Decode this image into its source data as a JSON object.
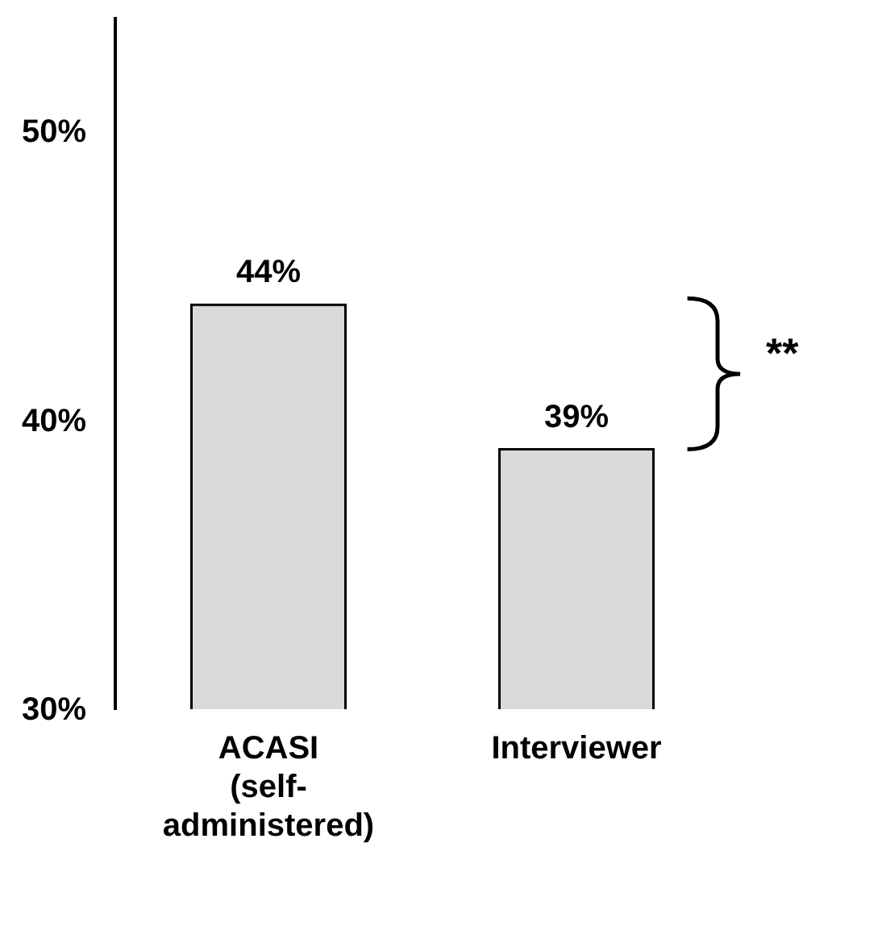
{
  "chart_data": {
    "type": "bar",
    "categories": [
      "ACASI (self-administered)",
      "Interviewer"
    ],
    "values": [
      44,
      39
    ],
    "value_labels": [
      "44%",
      "39%"
    ],
    "color": "#d9d9d9",
    "ylim": [
      30,
      54
    ],
    "yticks": [
      {
        "value": 30,
        "label": "30%"
      },
      {
        "value": 40,
        "label": "40%"
      },
      {
        "value": 50,
        "label": "50%"
      }
    ],
    "grid": false,
    "annotations": [
      "**"
    ]
  }
}
